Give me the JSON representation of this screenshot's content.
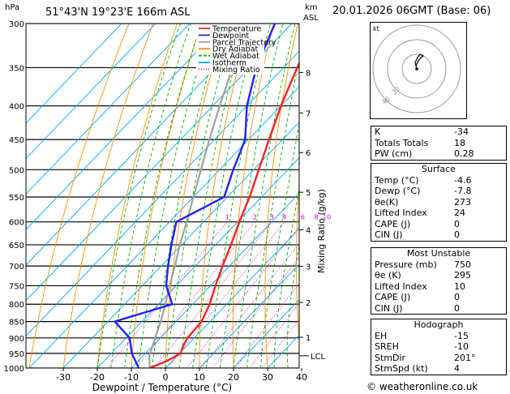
{
  "chart_data": {
    "type": "skew-t",
    "location_label": "51°43'N  19°23'E  166m  ASL",
    "units": {
      "pressure": "hPa",
      "height": "km",
      "height_sub": "ASL"
    },
    "xlabel": "Dewpoint / Temperature (°C)",
    "ylabel_right": "Mixing Ratio (g/kg)",
    "x_ticks": [
      -30,
      -20,
      -10,
      0,
      10,
      20,
      30,
      40
    ],
    "pressure_levels": [
      300,
      350,
      400,
      450,
      500,
      550,
      600,
      650,
      700,
      750,
      800,
      850,
      900,
      950,
      1000
    ],
    "height_ticks": [
      {
        "label": "8",
        "p": 356
      },
      {
        "label": "7",
        "p": 410
      },
      {
        "label": "6",
        "p": 471
      },
      {
        "label": "5",
        "p": 541
      },
      {
        "label": "4",
        "p": 617
      },
      {
        "label": "3",
        "p": 701
      },
      {
        "label": "2",
        "p": 795
      },
      {
        "label": "1",
        "p": 898
      }
    ],
    "lcl": {
      "label": "LCL",
      "p": 958
    },
    "mixing_ratio_labels": [
      "1",
      "2",
      "3",
      "4",
      "6",
      "8",
      "10",
      "15",
      "20",
      "25"
    ],
    "legend": [
      {
        "name": "Temperature",
        "color": "#ff2020"
      },
      {
        "name": "Dewpoint",
        "color": "#2020ff"
      },
      {
        "name": "Parcel Trajectory",
        "color": "#a0a0a0"
      },
      {
        "name": "Dry Adiabat",
        "color": "#ff9000"
      },
      {
        "name": "Wet Adiabat",
        "color": "#00b000"
      },
      {
        "name": "Isotherm",
        "color": "#00a8ff"
      },
      {
        "name": "Mixing Ratio",
        "color": "#d000d0"
      }
    ],
    "temperature": [
      {
        "p": 1000,
        "t": -4.6
      },
      {
        "p": 975,
        "t": -1.5
      },
      {
        "p": 950,
        "t": 0.3
      },
      {
        "p": 925,
        "t": -1.0
      },
      {
        "p": 900,
        "t": -2.0
      },
      {
        "p": 850,
        "t": -2.5
      },
      {
        "p": 800,
        "t": -5.0
      },
      {
        "p": 750,
        "t": -8.5
      },
      {
        "p": 700,
        "t": -12.0
      },
      {
        "p": 650,
        "t": -15.5
      },
      {
        "p": 600,
        "t": -19.5
      },
      {
        "p": 550,
        "t": -23.5
      },
      {
        "p": 500,
        "t": -28.5
      },
      {
        "p": 450,
        "t": -34.0
      },
      {
        "p": 400,
        "t": -40.0
      },
      {
        "p": 350,
        "t": -46.0
      },
      {
        "p": 300,
        "t": -52.0
      }
    ],
    "dewpoint": [
      {
        "p": 1000,
        "t": -7.8
      },
      {
        "p": 950,
        "t": -14.0
      },
      {
        "p": 900,
        "t": -19.0
      },
      {
        "p": 850,
        "t": -28.0
      },
      {
        "p": 800,
        "t": -16.0
      },
      {
        "p": 750,
        "t": -23.0
      },
      {
        "p": 700,
        "t": -28.0
      },
      {
        "p": 650,
        "t": -33.0
      },
      {
        "p": 600,
        "t": -38.0
      },
      {
        "p": 550,
        "t": -31.0
      },
      {
        "p": 500,
        "t": -36.0
      },
      {
        "p": 450,
        "t": -41.0
      },
      {
        "p": 400,
        "t": -50.0
      },
      {
        "p": 350,
        "t": -58.0
      },
      {
        "p": 300,
        "t": -65.0
      }
    ],
    "parcel": [
      {
        "p": 1000,
        "t": -4.6
      },
      {
        "p": 958,
        "t": -8.2
      },
      {
        "p": 900,
        "t": -11.5
      },
      {
        "p": 850,
        "t": -14.5
      },
      {
        "p": 800,
        "t": -18.0
      },
      {
        "p": 750,
        "t": -22.0
      },
      {
        "p": 700,
        "t": -26.0
      },
      {
        "p": 650,
        "t": -30.5
      },
      {
        "p": 600,
        "t": -35.0
      },
      {
        "p": 550,
        "t": -40.0
      },
      {
        "p": 500,
        "t": -45.5
      },
      {
        "p": 450,
        "t": -51.5
      },
      {
        "p": 400,
        "t": -58.0
      },
      {
        "p": 350,
        "t": -65.0
      },
      {
        "p": 300,
        "t": -72.0
      }
    ],
    "wind_barbs_p": [
      300,
      400,
      500,
      700,
      850,
      900,
      925,
      950,
      975,
      1000
    ]
  },
  "header": {
    "datetime": "20.01.2026  06GMT  (Base: 06)"
  },
  "hodograph": {
    "unit": "kt",
    "ring_labels": [
      "40",
      "30"
    ]
  },
  "indices": [
    {
      "label": "K",
      "value": "-34"
    },
    {
      "label": "Totals Totals",
      "value": "18"
    },
    {
      "label": "PW (cm)",
      "value": "0.28"
    }
  ],
  "surface": {
    "title": "Surface",
    "rows": [
      {
        "label": "Temp (°C)",
        "value": "-4.6"
      },
      {
        "label": "Dewp (°C)",
        "value": "-7.8"
      },
      {
        "label": "θe(K)",
        "value": "273"
      },
      {
        "label": "Lifted Index",
        "value": "24"
      },
      {
        "label": "CAPE (J)",
        "value": "0"
      },
      {
        "label": "CIN (J)",
        "value": "0"
      }
    ]
  },
  "most_unstable": {
    "title": "Most Unstable",
    "rows": [
      {
        "label": "Pressure (mb)",
        "value": "750"
      },
      {
        "label": "θe (K)",
        "value": "295"
      },
      {
        "label": "Lifted Index",
        "value": "10"
      },
      {
        "label": "CAPE (J)",
        "value": "0"
      },
      {
        "label": "CIN (J)",
        "value": "0"
      }
    ]
  },
  "hodograph_table": {
    "title": "Hodograph",
    "rows": [
      {
        "label": "EH",
        "value": "-15"
      },
      {
        "label": "SREH",
        "value": "-10"
      },
      {
        "label": "StmDir",
        "value": "201°"
      },
      {
        "label": "StmSpd (kt)",
        "value": "4"
      }
    ]
  },
  "credit": "© weatheronline.co.uk"
}
